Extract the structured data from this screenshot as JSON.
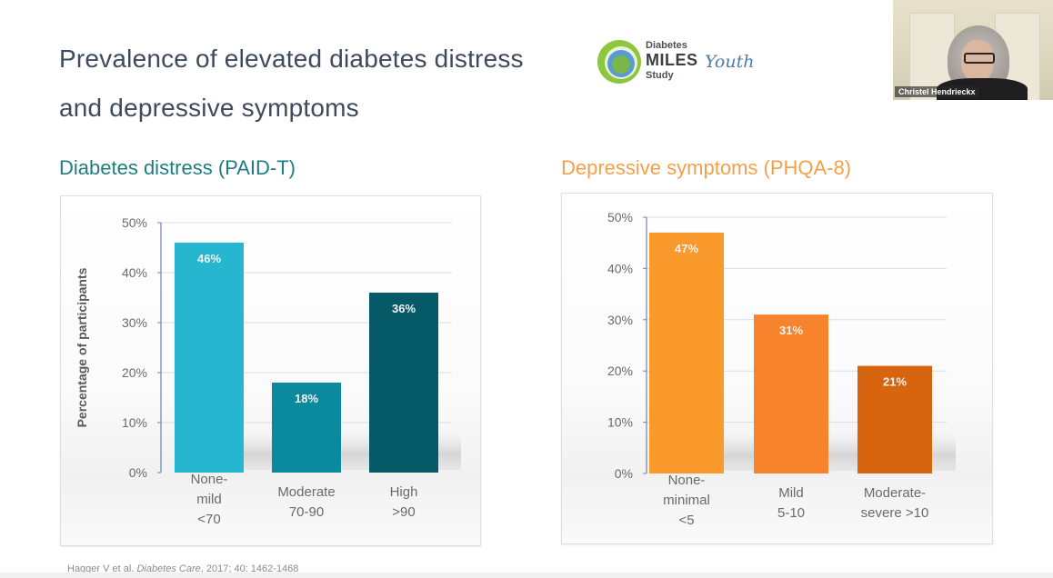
{
  "slide": {
    "title_line1": "Prevalence of elevated diabetes distress",
    "title_line2": "and depressive symptoms",
    "logo": {
      "line1": "Diabetes",
      "line2": "MILES",
      "line2_accent": "Youth",
      "line3": "Study",
      "colors": {
        "outer": "#8dc63f",
        "middle": "#5b9bd5",
        "inner": "#7ab648",
        "accent_text": "#4d7ea8"
      }
    },
    "video": {
      "participant_name": "Christel Hendrieckx"
    },
    "citation": {
      "authors": "Hagger V et al. ",
      "journal": "Diabetes Care",
      "details": ", 2017; 40: 1462-1468"
    }
  },
  "chart_data": [
    {
      "type": "bar",
      "title": "Diabetes distress (PAID-T)",
      "title_color": "#1f7d7f",
      "xlabel": "",
      "ylabel": "Percentage of participants",
      "ylim": [
        0,
        50
      ],
      "yticks": [
        0,
        10,
        20,
        30,
        40,
        50
      ],
      "ytick_labels": [
        "0%",
        "10%",
        "20%",
        "30%",
        "40%",
        "50%"
      ],
      "grid": true,
      "categories": [
        [
          "None-",
          "mild",
          "<70"
        ],
        [
          "Moderate",
          "70-90"
        ],
        [
          "High",
          ">90"
        ]
      ],
      "values": [
        46,
        18,
        36
      ],
      "data_labels": [
        "46%",
        "18%",
        "36%"
      ],
      "colors": [
        "#26b6cf",
        "#0a8a9c",
        "#065a68"
      ]
    },
    {
      "type": "bar",
      "title": "Depressive symptoms (PHQA-8)",
      "title_color": "#f2a14b",
      "xlabel": "",
      "ylabel": "",
      "ylim": [
        0,
        50
      ],
      "yticks": [
        0,
        10,
        20,
        30,
        40,
        50
      ],
      "ytick_labels": [
        "0%",
        "10%",
        "20%",
        "30%",
        "40%",
        "50%"
      ],
      "grid": true,
      "categories": [
        [
          "None-",
          "minimal",
          "<5"
        ],
        [
          "Mild",
          "5-10"
        ],
        [
          "Moderate-",
          "severe >10"
        ]
      ],
      "values": [
        47,
        31,
        21
      ],
      "data_labels": [
        "47%",
        "31%",
        "21%"
      ],
      "colors": [
        "#fb9a2c",
        "#f7832c",
        "#d7650f"
      ]
    }
  ]
}
